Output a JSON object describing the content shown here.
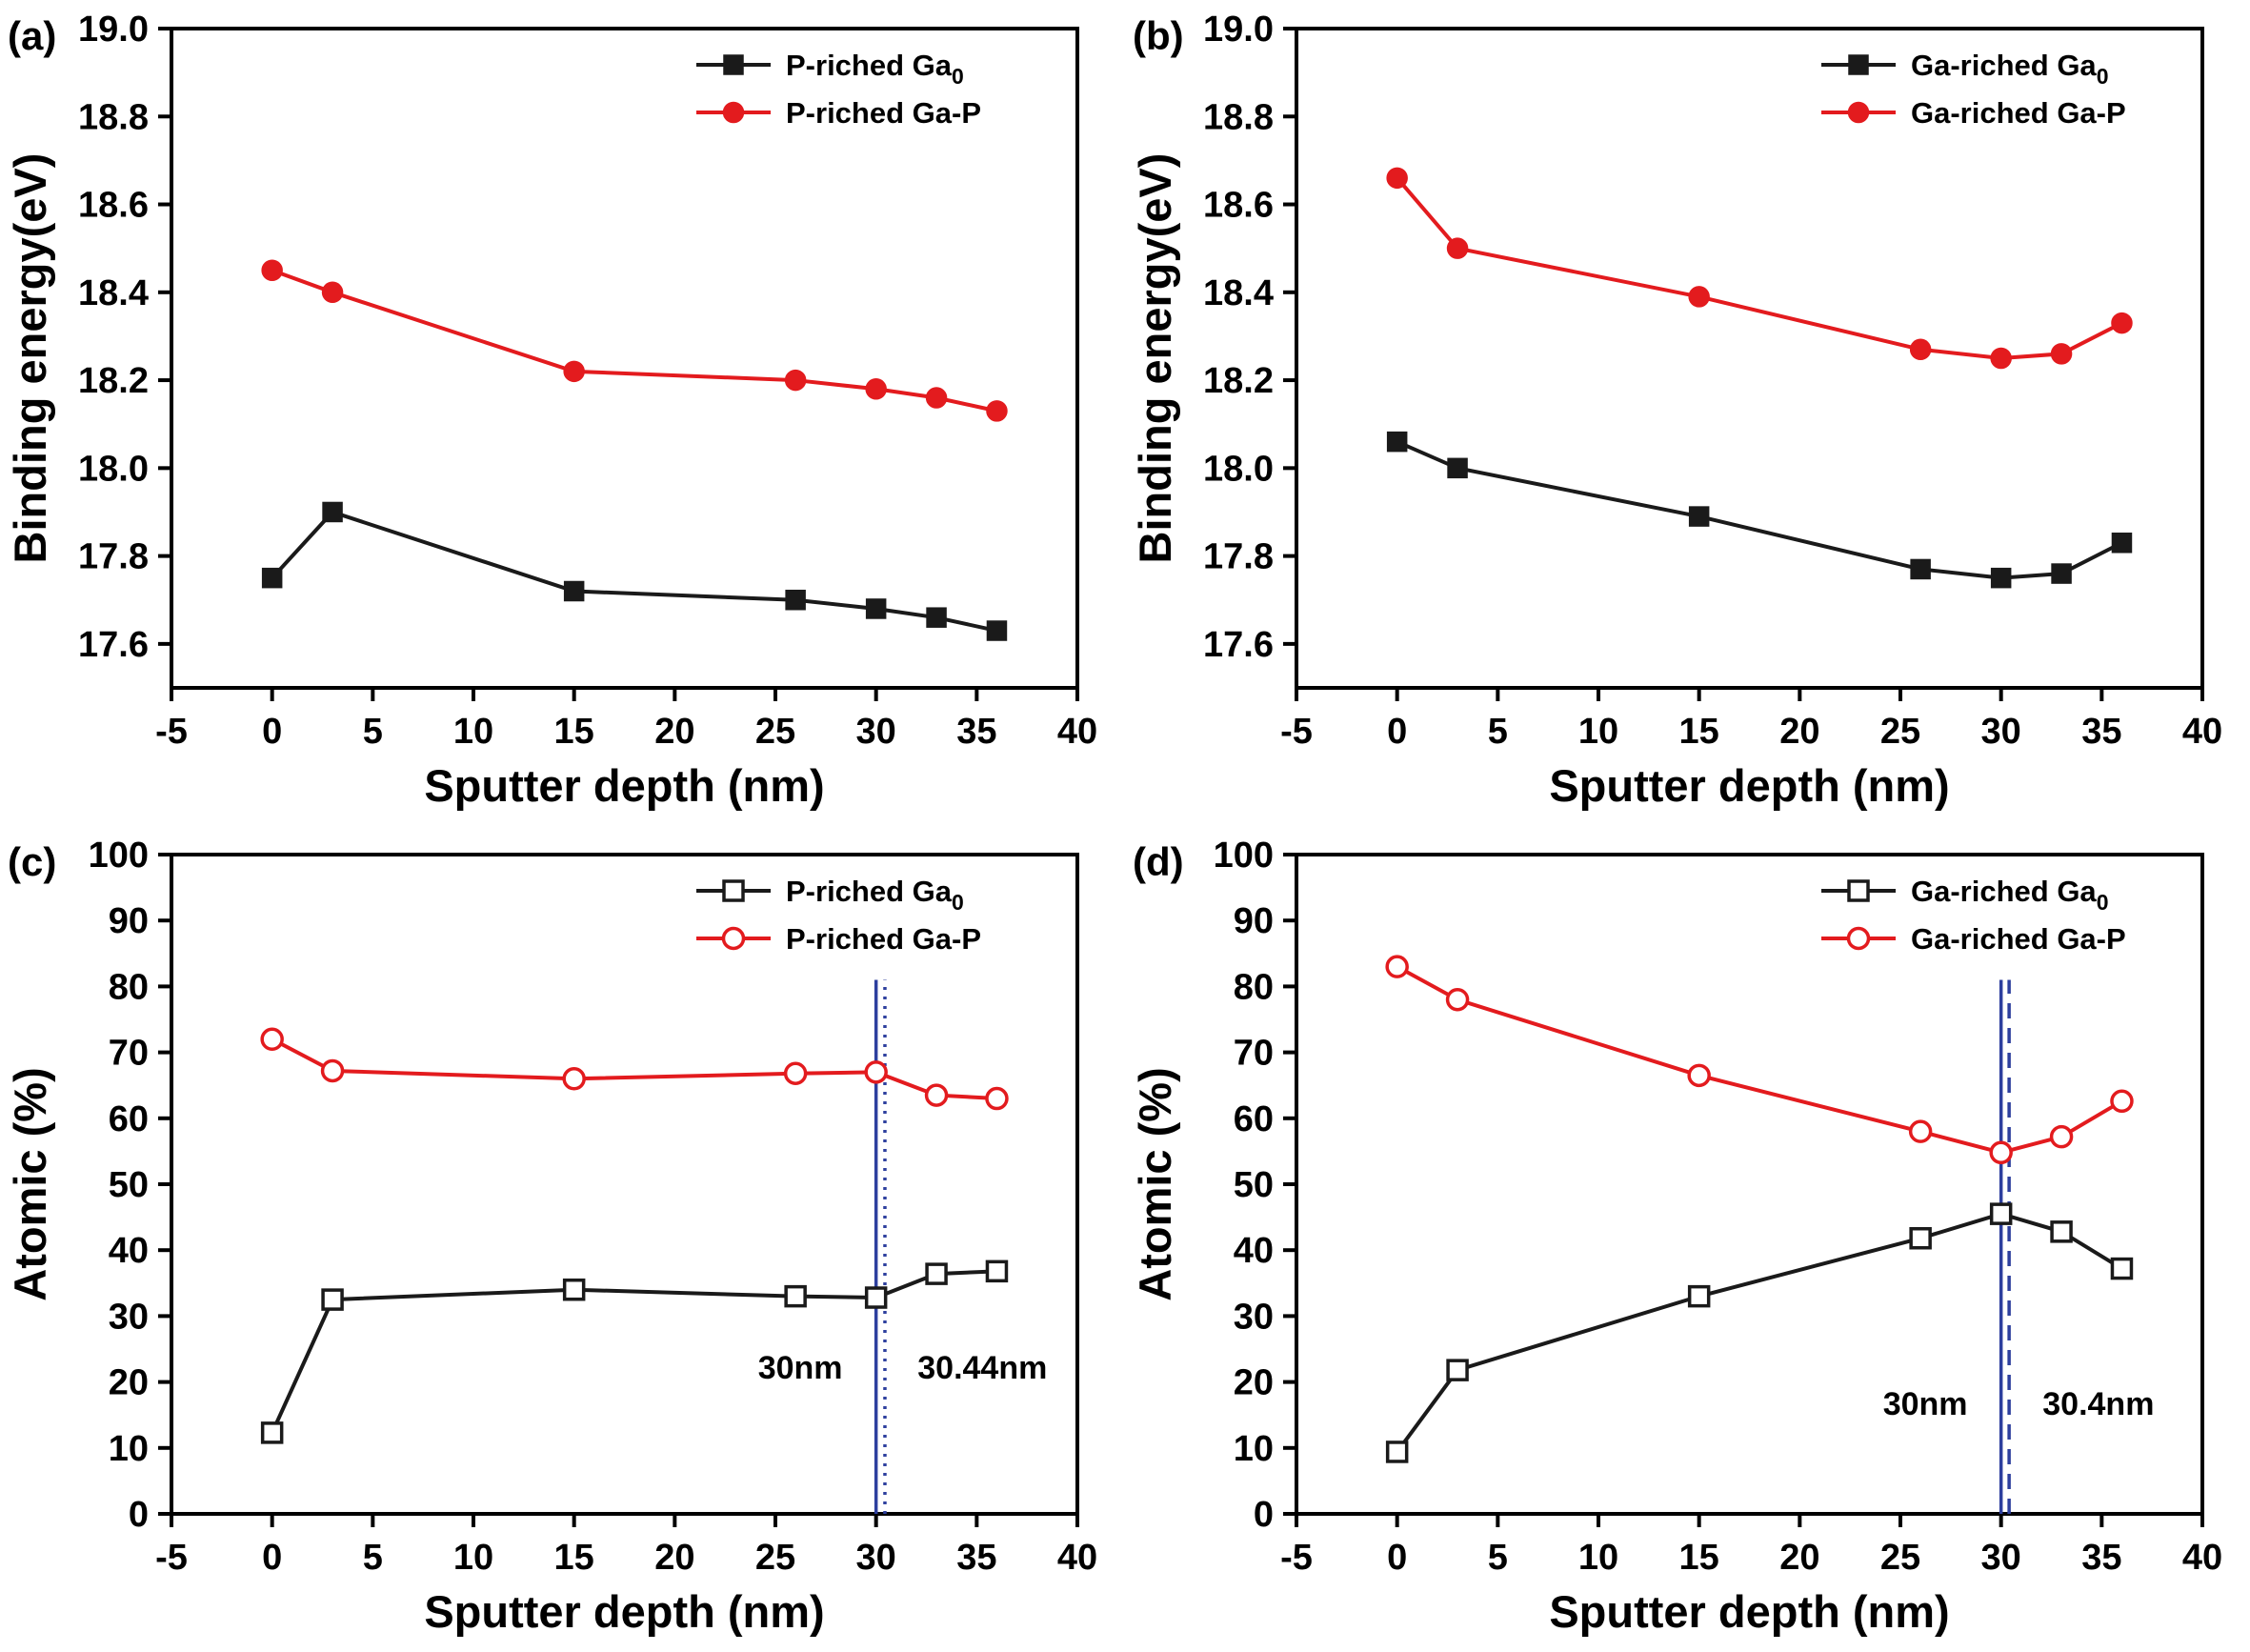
{
  "figure": {
    "background": "#ffffff",
    "panel_labels": [
      "(a)",
      "(b)",
      "(c)",
      "(d)"
    ]
  },
  "colors": {
    "black_series": "#1a1a1a",
    "red_series": "#e31b1e",
    "vline_blue": "#2d3f9e",
    "axis": "#000000"
  },
  "chart_data": [
    {
      "id": "a",
      "panel_label": "(a)",
      "type": "line",
      "xlabel": "Sputter depth (nm)",
      "ylabel": "Binding energy(eV)",
      "xlim": [
        -5,
        40
      ],
      "ylim": [
        17.5,
        19.0
      ],
      "xticks": [
        "-5",
        "0",
        "5",
        "10",
        "15",
        "20",
        "25",
        "30",
        "35",
        "40"
      ],
      "yticks": [
        "17.6",
        "17.8",
        "18.0",
        "18.2",
        "18.4",
        "18.6",
        "18.8",
        "19.0"
      ],
      "grid": false,
      "legend_position": "top-right",
      "x": [
        0,
        3,
        15,
        26,
        30,
        33,
        36
      ],
      "series": [
        {
          "name": "P-riched Ga₀",
          "label_main": "P-riched Ga",
          "label_sub": "0",
          "color": "#1a1a1a",
          "marker": "square",
          "fill": "filled",
          "values": [
            17.75,
            17.9,
            17.72,
            17.7,
            17.68,
            17.66,
            17.63
          ]
        },
        {
          "name": "P-riched Ga-P",
          "label_main": "P-riched Ga-P",
          "label_sub": "",
          "color": "#e31b1e",
          "marker": "circle",
          "fill": "filled",
          "values": [
            18.45,
            18.4,
            18.22,
            18.2,
            18.18,
            18.16,
            18.13
          ]
        }
      ],
      "vlines": [],
      "annotations": []
    },
    {
      "id": "b",
      "panel_label": "(b)",
      "type": "line",
      "xlabel": "Sputter depth (nm)",
      "ylabel": "Binding energy(eV)",
      "xlim": [
        -5,
        40
      ],
      "ylim": [
        17.5,
        19.0
      ],
      "xticks": [
        "-5",
        "0",
        "5",
        "10",
        "15",
        "20",
        "25",
        "30",
        "35",
        "40"
      ],
      "yticks": [
        "17.6",
        "17.8",
        "18.0",
        "18.2",
        "18.4",
        "18.6",
        "18.8",
        "19.0"
      ],
      "grid": false,
      "legend_position": "top-right",
      "x": [
        0,
        3,
        15,
        26,
        30,
        33,
        36
      ],
      "series": [
        {
          "name": "Ga-riched Ga₀",
          "label_main": "Ga-riched Ga",
          "label_sub": "0",
          "color": "#1a1a1a",
          "marker": "square",
          "fill": "filled",
          "values": [
            18.06,
            18.0,
            17.89,
            17.77,
            17.75,
            17.76,
            17.83
          ]
        },
        {
          "name": "Ga-riched Ga-P",
          "label_main": "Ga-riched Ga-P",
          "label_sub": "",
          "color": "#e31b1e",
          "marker": "circle",
          "fill": "filled",
          "values": [
            18.66,
            18.5,
            18.39,
            18.27,
            18.25,
            18.26,
            18.33
          ]
        }
      ],
      "vlines": [],
      "annotations": []
    },
    {
      "id": "c",
      "panel_label": "(c)",
      "type": "line",
      "xlabel": "Sputter depth (nm)",
      "ylabel": "Atomic (%)",
      "xlim": [
        -5,
        40
      ],
      "ylim": [
        0,
        100
      ],
      "xticks": [
        "-5",
        "0",
        "5",
        "10",
        "15",
        "20",
        "25",
        "30",
        "35",
        "40"
      ],
      "yticks": [
        "0",
        "10",
        "20",
        "30",
        "40",
        "50",
        "60",
        "70",
        "80",
        "90",
        "100"
      ],
      "grid": false,
      "legend_position": "top-right",
      "x": [
        0,
        3,
        15,
        26,
        30,
        33,
        36
      ],
      "series": [
        {
          "name": "P-riched Ga₀",
          "label_main": "P-riched Ga",
          "label_sub": "0",
          "color": "#1a1a1a",
          "marker": "square",
          "fill": "open",
          "values": [
            12.3,
            32.5,
            34.0,
            33.0,
            32.8,
            36.4,
            36.8
          ]
        },
        {
          "name": "P-riched Ga-P",
          "label_main": "P-riched Ga-P",
          "label_sub": "",
          "color": "#e31b1e",
          "marker": "circle",
          "fill": "open",
          "values": [
            72.0,
            67.2,
            66.0,
            66.8,
            67.0,
            63.5,
            63.0
          ]
        }
      ],
      "vline_top": 81,
      "vlines": [
        {
          "x": 30,
          "style": "solid"
        },
        {
          "x": 30.44,
          "style": "dotted"
        }
      ],
      "annotations": [
        {
          "text": "30nm",
          "x": 29.0,
          "y": 20.5,
          "anchor": "end"
        },
        {
          "text": "30.44nm",
          "x": 31.4,
          "y": 20.5,
          "anchor": "start"
        }
      ]
    },
    {
      "id": "d",
      "panel_label": "(d)",
      "type": "line",
      "xlabel": "Sputter depth (nm)",
      "ylabel": "Atomic (%)",
      "xlim": [
        -5,
        40
      ],
      "ylim": [
        0,
        100
      ],
      "xticks": [
        "-5",
        "0",
        "5",
        "10",
        "15",
        "20",
        "25",
        "30",
        "35",
        "40"
      ],
      "yticks": [
        "0",
        "10",
        "20",
        "30",
        "40",
        "50",
        "60",
        "70",
        "80",
        "90",
        "100"
      ],
      "grid": false,
      "legend_position": "top-right",
      "x": [
        0,
        3,
        15,
        26,
        30,
        33,
        36
      ],
      "series": [
        {
          "name": "Ga-riched Ga₀",
          "label_main": "Ga-riched Ga",
          "label_sub": "0",
          "color": "#1a1a1a",
          "marker": "square",
          "fill": "open",
          "values": [
            9.4,
            21.8,
            33.0,
            41.8,
            45.5,
            42.8,
            37.2
          ]
        },
        {
          "name": "Ga-riched Ga-P",
          "label_main": "Ga-riched Ga-P",
          "label_sub": "",
          "color": "#e31b1e",
          "marker": "circle",
          "fill": "open",
          "values": [
            83.0,
            78.0,
            66.5,
            58.0,
            54.8,
            57.2,
            62.6
          ]
        }
      ],
      "vline_top": 81,
      "vlines": [
        {
          "x": 30,
          "style": "solid"
        },
        {
          "x": 30.4,
          "style": "dashed"
        }
      ],
      "annotations": [
        {
          "text": "30nm",
          "x": 29.0,
          "y": 15.0,
          "anchor": "end"
        },
        {
          "text": "30.4nm",
          "x": 31.4,
          "y": 15.0,
          "anchor": "start"
        }
      ]
    }
  ]
}
